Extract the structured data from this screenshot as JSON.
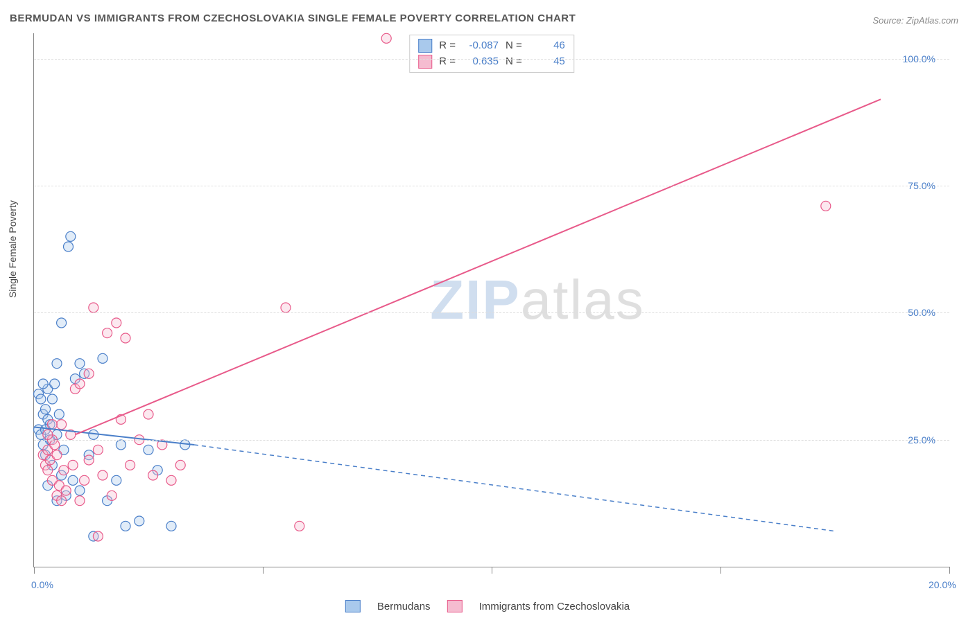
{
  "title": "BERMUDAN VS IMMIGRANTS FROM CZECHOSLOVAKIA SINGLE FEMALE POVERTY CORRELATION CHART",
  "source": "Source: ZipAtlas.com",
  "ylabel": "Single Female Poverty",
  "watermark_a": "ZIP",
  "watermark_b": "atlas",
  "chart": {
    "type": "scatter-correlation",
    "background_color": "#ffffff",
    "grid_color": "#dddddd",
    "axis_color": "#888888",
    "tick_label_color": "#4a7fc9",
    "title_fontsize": 15,
    "label_fontsize": 14,
    "xlim": [
      0,
      20
    ],
    "ylim": [
      0,
      105
    ],
    "x_ticks": [
      0,
      5,
      10,
      15,
      20
    ],
    "x_tick_labels": [
      "0.0%",
      "",
      "",
      "",
      "20.0%"
    ],
    "y_gridlines": [
      25,
      50,
      75,
      100
    ],
    "y_tick_labels": [
      "25.0%",
      "50.0%",
      "75.0%",
      "100.0%"
    ],
    "marker_radius": 7,
    "marker_stroke_width": 1.2,
    "marker_fill_opacity": 0.35,
    "line_width": 2,
    "series": [
      {
        "name": "Bermudans",
        "color_stroke": "#4a7fc9",
        "color_fill": "#a9c9ec",
        "R": "-0.087",
        "N": "46",
        "trend": {
          "x1": 0,
          "y1": 27.5,
          "x2": 3.5,
          "y2": 24,
          "dash_x2": 17.5,
          "dash_y2": 7
        },
        "points": [
          [
            0.1,
            27
          ],
          [
            0.15,
            26
          ],
          [
            0.2,
            30
          ],
          [
            0.2,
            24
          ],
          [
            0.25,
            31
          ],
          [
            0.25,
            22
          ],
          [
            0.3,
            35
          ],
          [
            0.3,
            29
          ],
          [
            0.35,
            28
          ],
          [
            0.35,
            25
          ],
          [
            0.4,
            33
          ],
          [
            0.4,
            20
          ],
          [
            0.45,
            36
          ],
          [
            0.5,
            40
          ],
          [
            0.5,
            26
          ],
          [
            0.55,
            30
          ],
          [
            0.6,
            48
          ],
          [
            0.6,
            18
          ],
          [
            0.65,
            23
          ],
          [
            0.7,
            14
          ],
          [
            0.75,
            63
          ],
          [
            0.8,
            65
          ],
          [
            0.85,
            17
          ],
          [
            0.9,
            37
          ],
          [
            1.0,
            40
          ],
          [
            1.0,
            15
          ],
          [
            1.1,
            38
          ],
          [
            1.2,
            22
          ],
          [
            1.3,
            6
          ],
          [
            1.3,
            26
          ],
          [
            1.5,
            41
          ],
          [
            1.6,
            13
          ],
          [
            1.8,
            17
          ],
          [
            1.9,
            24
          ],
          [
            2.0,
            8
          ],
          [
            2.3,
            9
          ],
          [
            2.5,
            23
          ],
          [
            2.7,
            19
          ],
          [
            3.0,
            8
          ],
          [
            3.3,
            24
          ],
          [
            0.3,
            16
          ],
          [
            0.5,
            13
          ],
          [
            0.1,
            34
          ],
          [
            0.15,
            33
          ],
          [
            0.2,
            36
          ],
          [
            0.25,
            27
          ]
        ]
      },
      {
        "name": "Immigrants from Czechoslovakia",
        "color_stroke": "#e85a8a",
        "color_fill": "#f5bcd0",
        "R": "0.635",
        "N": "45",
        "trend": {
          "x1": 0.9,
          "y1": 26,
          "x2": 18.5,
          "y2": 92
        },
        "points": [
          [
            0.2,
            22
          ],
          [
            0.25,
            20
          ],
          [
            0.3,
            23
          ],
          [
            0.3,
            19
          ],
          [
            0.35,
            21
          ],
          [
            0.4,
            25
          ],
          [
            0.4,
            17
          ],
          [
            0.45,
            24
          ],
          [
            0.5,
            22
          ],
          [
            0.55,
            16
          ],
          [
            0.6,
            28
          ],
          [
            0.65,
            19
          ],
          [
            0.7,
            15
          ],
          [
            0.8,
            26
          ],
          [
            0.85,
            20
          ],
          [
            0.9,
            35
          ],
          [
            1.0,
            36
          ],
          [
            1.0,
            13
          ],
          [
            1.1,
            17
          ],
          [
            1.2,
            38
          ],
          [
            1.2,
            21
          ],
          [
            1.3,
            51
          ],
          [
            1.4,
            23
          ],
          [
            1.5,
            18
          ],
          [
            1.6,
            46
          ],
          [
            1.7,
            14
          ],
          [
            1.8,
            48
          ],
          [
            1.9,
            29
          ],
          [
            2.0,
            45
          ],
          [
            2.1,
            20
          ],
          [
            2.3,
            25
          ],
          [
            2.5,
            30
          ],
          [
            2.6,
            18
          ],
          [
            2.8,
            24
          ],
          [
            3.0,
            17
          ],
          [
            3.2,
            20
          ],
          [
            5.5,
            51
          ],
          [
            5.8,
            8
          ],
          [
            1.4,
            6
          ],
          [
            0.5,
            14
          ],
          [
            0.6,
            13
          ],
          [
            0.3,
            26
          ],
          [
            0.4,
            28
          ],
          [
            17.3,
            71
          ],
          [
            7.7,
            104
          ]
        ]
      }
    ]
  },
  "stats_labels": {
    "R": "R =",
    "N": "N ="
  },
  "legend_labels": [
    "Bermudans",
    "Immigrants from Czechoslovakia"
  ]
}
